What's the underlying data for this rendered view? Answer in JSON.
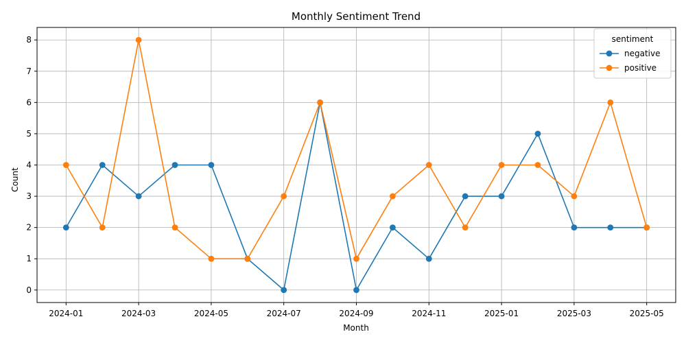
{
  "chart_data": {
    "type": "line",
    "title": "Monthly Sentiment Trend",
    "xlabel": "Month",
    "ylabel": "Count",
    "x": [
      "2024-01",
      "2024-02",
      "2024-03",
      "2024-04",
      "2024-05",
      "2024-06",
      "2024-07",
      "2024-08",
      "2024-09",
      "2024-10",
      "2024-11",
      "2024-12",
      "2025-01",
      "2025-02",
      "2025-03",
      "2025-04",
      "2025-05"
    ],
    "x_ticks": [
      "2024-01",
      "2024-03",
      "2024-05",
      "2024-07",
      "2024-09",
      "2024-11",
      "2025-01",
      "2025-03",
      "2025-05"
    ],
    "y_ticks": [
      "0",
      "1",
      "2",
      "3",
      "4",
      "5",
      "6",
      "7",
      "8"
    ],
    "ylim": [
      -0.4,
      8.4
    ],
    "grid": true,
    "legend": {
      "title": "sentiment",
      "position": "top-right"
    },
    "series": [
      {
        "name": "negative",
        "color": "#1f77b4",
        "values": [
          2,
          4,
          3,
          4,
          4,
          1,
          0,
          6,
          0,
          2,
          1,
          3,
          3,
          5,
          2,
          2,
          2
        ]
      },
      {
        "name": "positive",
        "color": "#ff7f0e",
        "values": [
          4,
          2,
          8,
          2,
          1,
          1,
          3,
          6,
          1,
          3,
          4,
          2,
          4,
          4,
          3,
          6,
          2
        ]
      }
    ]
  }
}
